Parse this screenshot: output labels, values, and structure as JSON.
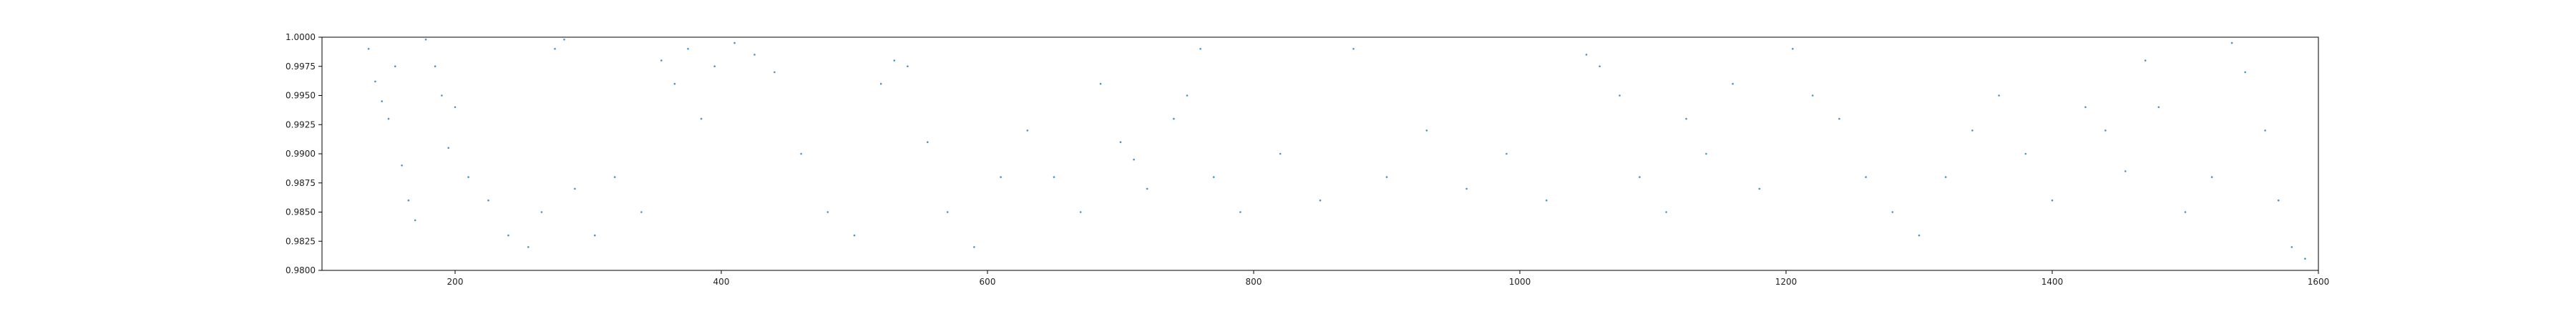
{
  "chart_data": {
    "type": "scatter",
    "title": "",
    "xlabel": "",
    "ylabel": "",
    "xlim": [
      100,
      1600
    ],
    "ylim": [
      0.98,
      1.0
    ],
    "x_ticks": [
      "200",
      "400",
      "600",
      "800",
      "1000",
      "1200",
      "1400",
      "1600"
    ],
    "x_tick_values": [
      200,
      400,
      600,
      800,
      1000,
      1200,
      1400,
      1600
    ],
    "y_ticks": [
      "0.9800",
      "0.9825",
      "0.9850",
      "0.9875",
      "0.9900",
      "0.9925",
      "0.9950",
      "0.9975",
      "1.0000"
    ],
    "y_tick_values": [
      0.98,
      0.9825,
      0.985,
      0.9875,
      0.99,
      0.9925,
      0.995,
      0.9975,
      1.0
    ],
    "grid": false,
    "legend": "none",
    "point_color": "#1f77b4",
    "point_density": "very dense scattered points across x range ~130 to ~1590",
    "series": [
      {
        "values": [
          [
            135,
            0.999
          ],
          [
            140,
            0.9962
          ],
          [
            145,
            0.9945
          ],
          [
            150,
            0.993
          ],
          [
            155,
            0.9975
          ],
          [
            160,
            0.989
          ],
          [
            165,
            0.986
          ],
          [
            170,
            0.9843
          ],
          [
            178,
            0.9998
          ],
          [
            185,
            0.9975
          ],
          [
            190,
            0.995
          ],
          [
            195,
            0.9905
          ],
          [
            200,
            0.994
          ],
          [
            210,
            0.988
          ],
          [
            225,
            0.986
          ],
          [
            240,
            0.983
          ],
          [
            255,
            0.982
          ],
          [
            265,
            0.985
          ],
          [
            275,
            0.999
          ],
          [
            282,
            0.9998
          ],
          [
            290,
            0.987
          ],
          [
            305,
            0.983
          ],
          [
            320,
            0.988
          ],
          [
            340,
            0.985
          ],
          [
            355,
            0.998
          ],
          [
            365,
            0.996
          ],
          [
            375,
            0.999
          ],
          [
            385,
            0.993
          ],
          [
            395,
            0.9975
          ],
          [
            410,
            0.9995
          ],
          [
            425,
            0.9985
          ],
          [
            440,
            0.997
          ],
          [
            460,
            0.99
          ],
          [
            480,
            0.985
          ],
          [
            500,
            0.983
          ],
          [
            520,
            0.996
          ],
          [
            530,
            0.998
          ],
          [
            540,
            0.9975
          ],
          [
            555,
            0.991
          ],
          [
            570,
            0.985
          ],
          [
            590,
            0.982
          ],
          [
            610,
            0.988
          ],
          [
            630,
            0.992
          ],
          [
            650,
            0.988
          ],
          [
            670,
            0.985
          ],
          [
            685,
            0.996
          ],
          [
            700,
            0.991
          ],
          [
            710,
            0.9895
          ],
          [
            720,
            0.987
          ],
          [
            740,
            0.993
          ],
          [
            750,
            0.995
          ],
          [
            760,
            0.999
          ],
          [
            770,
            0.988
          ],
          [
            790,
            0.985
          ],
          [
            820,
            0.99
          ],
          [
            850,
            0.986
          ],
          [
            875,
            0.999
          ],
          [
            900,
            0.988
          ],
          [
            930,
            0.992
          ],
          [
            960,
            0.987
          ],
          [
            990,
            0.99
          ],
          [
            1020,
            0.986
          ],
          [
            1050,
            0.9985
          ],
          [
            1060,
            0.9975
          ],
          [
            1075,
            0.995
          ],
          [
            1090,
            0.988
          ],
          [
            1110,
            0.985
          ],
          [
            1125,
            0.993
          ],
          [
            1140,
            0.99
          ],
          [
            1160,
            0.996
          ],
          [
            1180,
            0.987
          ],
          [
            1205,
            0.999
          ],
          [
            1220,
            0.995
          ],
          [
            1240,
            0.993
          ],
          [
            1260,
            0.988
          ],
          [
            1280,
            0.985
          ],
          [
            1300,
            0.983
          ],
          [
            1320,
            0.988
          ],
          [
            1340,
            0.992
          ],
          [
            1360,
            0.995
          ],
          [
            1380,
            0.99
          ],
          [
            1400,
            0.986
          ],
          [
            1425,
            0.994
          ],
          [
            1440,
            0.992
          ],
          [
            1455,
            0.9885
          ],
          [
            1470,
            0.998
          ],
          [
            1480,
            0.994
          ],
          [
            1500,
            0.985
          ],
          [
            1520,
            0.988
          ],
          [
            1535,
            0.9995
          ],
          [
            1545,
            0.997
          ],
          [
            1560,
            0.992
          ],
          [
            1570,
            0.986
          ],
          [
            1580,
            0.982
          ],
          [
            1590,
            0.981
          ]
        ]
      }
    ]
  }
}
